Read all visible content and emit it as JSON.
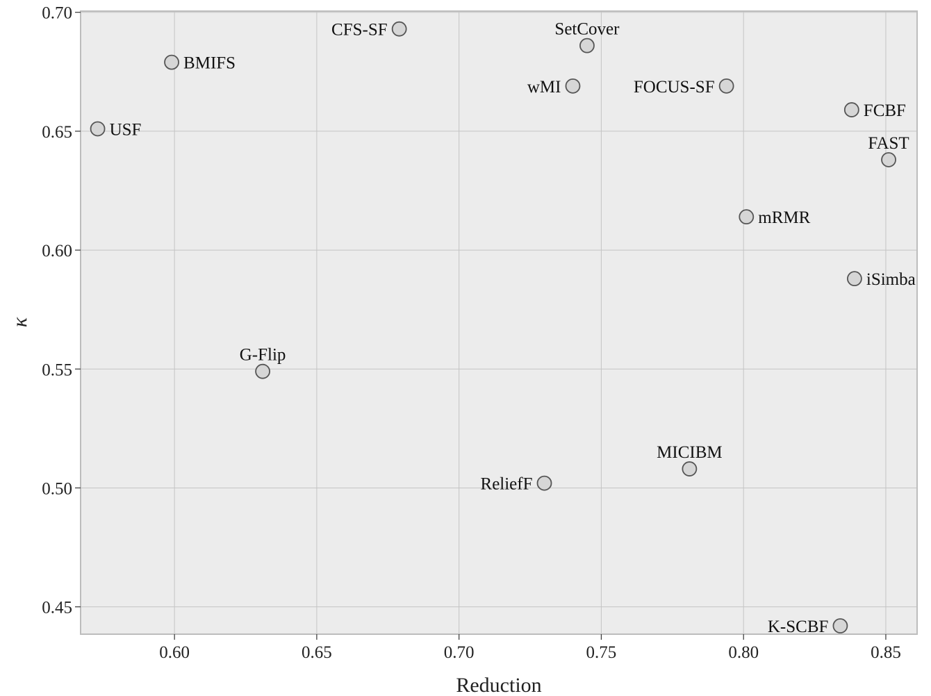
{
  "chart_data": {
    "type": "scatter",
    "title": "",
    "xlabel": "Reduction",
    "ylabel": "κ",
    "xlim": [
      0.567,
      0.861
    ],
    "ylim": [
      0.4385,
      0.7005
    ],
    "xticks": [
      0.6,
      0.65,
      0.7,
      0.75,
      0.8,
      0.85
    ],
    "xtick_labels": [
      "0.60",
      "0.65",
      "0.70",
      "0.75",
      "0.80",
      "0.85"
    ],
    "yticks": [
      0.45,
      0.5,
      0.55,
      0.6,
      0.65,
      0.7
    ],
    "ytick_labels": [
      "0.45",
      "0.50",
      "0.55",
      "0.60",
      "0.65",
      "0.70"
    ],
    "grid": true,
    "colors": {
      "plot_background": "#ececec",
      "marker_fill": "#d6d6d6",
      "marker_edge": "#555555",
      "grid": "#c4c4c4",
      "frame": "#bdbdbd"
    },
    "points": [
      {
        "label": "CFS-SF",
        "x": 0.679,
        "y": 0.693,
        "label_pos": "left"
      },
      {
        "label": "SetCover",
        "x": 0.745,
        "y": 0.686,
        "label_pos": "above"
      },
      {
        "label": "BMIFS",
        "x": 0.599,
        "y": 0.679,
        "label_pos": "right"
      },
      {
        "label": "wMI",
        "x": 0.74,
        "y": 0.669,
        "label_pos": "left"
      },
      {
        "label": "FOCUS-SF",
        "x": 0.794,
        "y": 0.669,
        "label_pos": "left"
      },
      {
        "label": "FCBF",
        "x": 0.838,
        "y": 0.659,
        "label_pos": "right"
      },
      {
        "label": "USF",
        "x": 0.573,
        "y": 0.651,
        "label_pos": "right"
      },
      {
        "label": "FAST",
        "x": 0.851,
        "y": 0.638,
        "label_pos": "above"
      },
      {
        "label": "mRMR",
        "x": 0.801,
        "y": 0.614,
        "label_pos": "right"
      },
      {
        "label": "iSimba",
        "x": 0.839,
        "y": 0.588,
        "label_pos": "right"
      },
      {
        "label": "G-Flip",
        "x": 0.631,
        "y": 0.549,
        "label_pos": "above"
      },
      {
        "label": "MICIBM",
        "x": 0.781,
        "y": 0.508,
        "label_pos": "above"
      },
      {
        "label": "ReliefF",
        "x": 0.73,
        "y": 0.502,
        "label_pos": "left"
      },
      {
        "label": "K-SCBF",
        "x": 0.834,
        "y": 0.442,
        "label_pos": "left"
      }
    ]
  }
}
